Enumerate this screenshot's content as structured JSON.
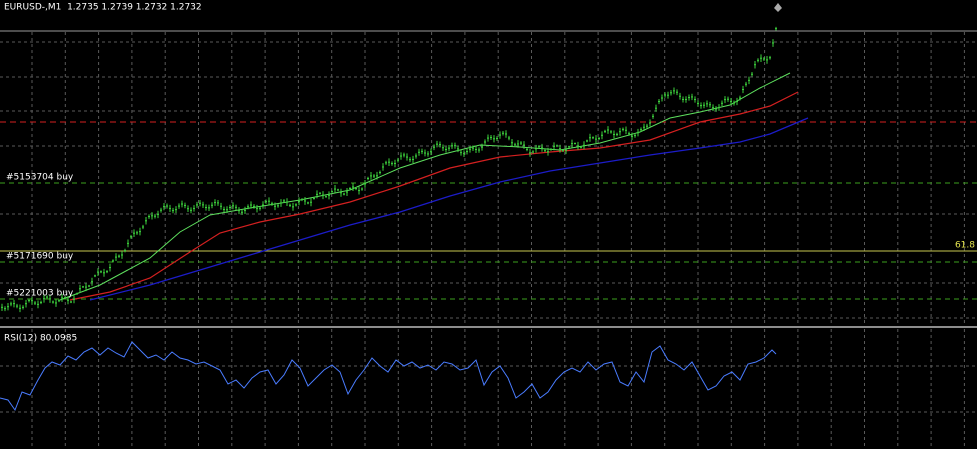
{
  "header": {
    "symbol_info": "EURUSD-,M1  1.2735 1.2739 1.2732 1.2732"
  },
  "orders": [
    {
      "label": "#5153704 buy"
    },
    {
      "label": "#5171690 buy"
    },
    {
      "label": "#5221003 buy"
    }
  ],
  "fibo_label": "61.8",
  "rsi": {
    "label": "RSI(12) 80.0985"
  }
}
